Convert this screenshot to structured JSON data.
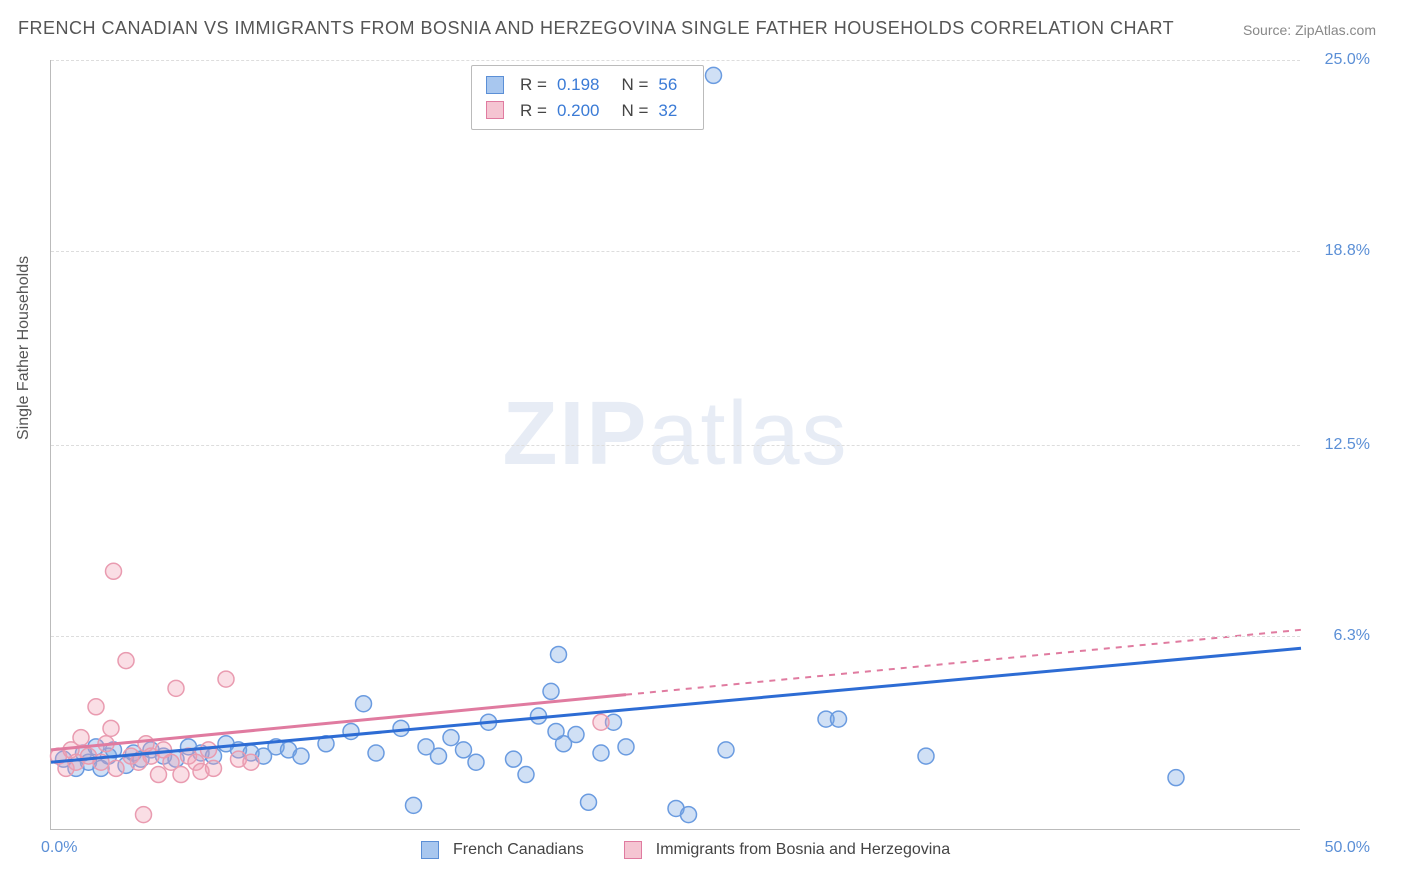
{
  "title": "FRENCH CANADIAN VS IMMIGRANTS FROM BOSNIA AND HERZEGOVINA SINGLE FATHER HOUSEHOLDS CORRELATION CHART",
  "source": "Source: ZipAtlas.com",
  "watermark_bold": "ZIP",
  "watermark_light": "atlas",
  "y_axis_label": "Single Father Households",
  "chart": {
    "type": "scatter",
    "xlim": [
      0,
      50
    ],
    "ylim": [
      0,
      25
    ],
    "x_ticks": [
      {
        "value": 0,
        "label": "0.0%"
      },
      {
        "value": 50,
        "label": "50.0%"
      }
    ],
    "y_ticks": [
      {
        "value": 6.3,
        "label": "6.3%"
      },
      {
        "value": 12.5,
        "label": "12.5%"
      },
      {
        "value": 18.8,
        "label": "18.8%"
      },
      {
        "value": 25.0,
        "label": "25.0%"
      }
    ],
    "grid_color": "#dddddd",
    "background_color": "#ffffff",
    "marker_radius": 8,
    "marker_stroke_width": 1.5,
    "trend_line_width_solid": 3,
    "trend_line_width_dashed": 2
  },
  "series": [
    {
      "name": "French Canadians",
      "fill_color": "rgba(120,165,225,0.35)",
      "stroke_color": "#6a9be0",
      "swatch_fill": "#a8c7ef",
      "swatch_border": "#5b8fd6",
      "r": "0.198",
      "n": "56",
      "trend_color": "#2d6cd4",
      "trend": {
        "x1": 0,
        "y1": 2.2,
        "x2": 50,
        "y2": 5.9,
        "max_x_solid": 50
      },
      "points": [
        [
          0.5,
          2.3
        ],
        [
          1.0,
          2.0
        ],
        [
          1.3,
          2.5
        ],
        [
          1.5,
          2.2
        ],
        [
          1.8,
          2.7
        ],
        [
          2.0,
          2.0
        ],
        [
          2.3,
          2.4
        ],
        [
          2.5,
          2.6
        ],
        [
          3.0,
          2.1
        ],
        [
          3.3,
          2.5
        ],
        [
          3.6,
          2.3
        ],
        [
          4.0,
          2.6
        ],
        [
          4.5,
          2.4
        ],
        [
          5.0,
          2.3
        ],
        [
          5.5,
          2.7
        ],
        [
          6.0,
          2.5
        ],
        [
          6.5,
          2.4
        ],
        [
          7.0,
          2.8
        ],
        [
          7.5,
          2.6
        ],
        [
          8.0,
          2.5
        ],
        [
          8.5,
          2.4
        ],
        [
          9.0,
          2.7
        ],
        [
          9.5,
          2.6
        ],
        [
          10.0,
          2.4
        ],
        [
          11.0,
          2.8
        ],
        [
          12.0,
          3.2
        ],
        [
          12.5,
          4.1
        ],
        [
          13.0,
          2.5
        ],
        [
          14.0,
          3.3
        ],
        [
          14.5,
          0.8
        ],
        [
          15.0,
          2.7
        ],
        [
          15.5,
          2.4
        ],
        [
          16.0,
          3.0
        ],
        [
          16.5,
          2.6
        ],
        [
          17.0,
          2.2
        ],
        [
          17.5,
          3.5
        ],
        [
          18.5,
          2.3
        ],
        [
          19.0,
          1.8
        ],
        [
          20.0,
          4.5
        ],
        [
          20.3,
          5.7
        ],
        [
          20.5,
          2.8
        ],
        [
          21.0,
          3.1
        ],
        [
          21.5,
          0.9
        ],
        [
          22.0,
          2.5
        ],
        [
          22.5,
          3.5
        ],
        [
          23.0,
          2.7
        ],
        [
          25.0,
          0.7
        ],
        [
          25.5,
          0.5
        ],
        [
          26.5,
          24.5
        ],
        [
          27.0,
          2.6
        ],
        [
          31.0,
          3.6
        ],
        [
          31.5,
          3.6
        ],
        [
          35.0,
          2.4
        ],
        [
          45.0,
          1.7
        ],
        [
          19.5,
          3.7
        ],
        [
          20.2,
          3.2
        ]
      ]
    },
    {
      "name": "Immigrants from Bosnia and Herzegovina",
      "fill_color": "rgba(240,160,180,0.35)",
      "stroke_color": "#e99bb0",
      "swatch_fill": "#f5c5d2",
      "swatch_border": "#e07ba0",
      "r": "0.200",
      "n": "32",
      "trend_color": "#e07ba0",
      "trend": {
        "x1": 0,
        "y1": 2.6,
        "x2": 50,
        "y2": 6.5,
        "max_x_solid": 23
      },
      "points": [
        [
          0.3,
          2.4
        ],
        [
          0.6,
          2.0
        ],
        [
          0.8,
          2.6
        ],
        [
          1.0,
          2.2
        ],
        [
          1.2,
          3.0
        ],
        [
          1.5,
          2.4
        ],
        [
          1.8,
          4.0
        ],
        [
          2.0,
          2.2
        ],
        [
          2.2,
          2.8
        ],
        [
          2.4,
          3.3
        ],
        [
          2.5,
          8.4
        ],
        [
          2.6,
          2.0
        ],
        [
          3.0,
          5.5
        ],
        [
          3.2,
          2.4
        ],
        [
          3.5,
          2.2
        ],
        [
          3.7,
          0.5
        ],
        [
          3.8,
          2.8
        ],
        [
          4.0,
          2.4
        ],
        [
          4.3,
          1.8
        ],
        [
          4.5,
          2.6
        ],
        [
          4.8,
          2.2
        ],
        [
          5.0,
          4.6
        ],
        [
          5.2,
          1.8
        ],
        [
          5.5,
          2.4
        ],
        [
          5.8,
          2.2
        ],
        [
          6.0,
          1.9
        ],
        [
          6.3,
          2.6
        ],
        [
          6.5,
          2.0
        ],
        [
          7.0,
          4.9
        ],
        [
          7.5,
          2.3
        ],
        [
          8.0,
          2.2
        ],
        [
          22.0,
          3.5
        ]
      ]
    }
  ],
  "stats_box": {
    "rows": [
      {
        "series_idx": 0
      },
      {
        "series_idx": 1
      }
    ],
    "r_label": "R = ",
    "n_label": "N = "
  },
  "legend_bottom": [
    {
      "series_idx": 0
    },
    {
      "series_idx": 1
    }
  ]
}
